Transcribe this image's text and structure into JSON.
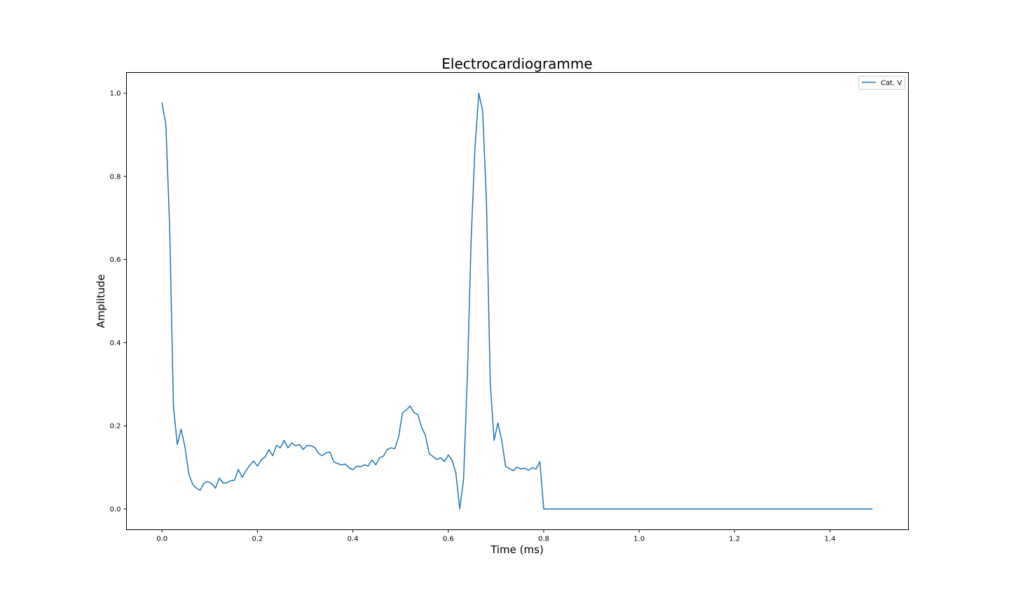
{
  "chart_data": {
    "type": "line",
    "title": "Electrocardiogramme",
    "xlabel": "Time (ms)",
    "ylabel": "Amplitude",
    "xlim": [
      -0.0745,
      1.5645
    ],
    "ylim": [
      -0.05,
      1.05
    ],
    "xticks": [
      0.0,
      0.2,
      0.4,
      0.6,
      0.8,
      1.0,
      1.2,
      1.4
    ],
    "xtick_labels": [
      "0.0",
      "0.2",
      "0.4",
      "0.6",
      "0.8",
      "1.0",
      "1.2",
      "1.4"
    ],
    "yticks": [
      0.0,
      0.2,
      0.4,
      0.6,
      0.8,
      1.0
    ],
    "ytick_labels": [
      "0.0",
      "0.2",
      "0.4",
      "0.6",
      "0.8",
      "1.0"
    ],
    "grid": false,
    "legend_position": "top-right",
    "series": [
      {
        "name": "Cat. V",
        "color": "#1f77b4",
        "x_start": 0.0,
        "x_step": 0.008,
        "values": [
          0.977,
          0.925,
          0.68,
          0.245,
          0.155,
          0.192,
          0.15,
          0.085,
          0.06,
          0.05,
          0.045,
          0.062,
          0.066,
          0.061,
          0.05,
          0.074,
          0.062,
          0.063,
          0.068,
          0.069,
          0.095,
          0.076,
          0.092,
          0.105,
          0.115,
          0.103,
          0.118,
          0.125,
          0.143,
          0.128,
          0.153,
          0.147,
          0.165,
          0.147,
          0.159,
          0.152,
          0.155,
          0.143,
          0.153,
          0.152,
          0.148,
          0.134,
          0.128,
          0.135,
          0.137,
          0.113,
          0.109,
          0.106,
          0.108,
          0.099,
          0.094,
          0.103,
          0.101,
          0.106,
          0.103,
          0.118,
          0.106,
          0.123,
          0.127,
          0.143,
          0.147,
          0.145,
          0.174,
          0.231,
          0.238,
          0.248,
          0.232,
          0.227,
          0.197,
          0.177,
          0.133,
          0.126,
          0.119,
          0.123,
          0.114,
          0.13,
          0.117,
          0.086,
          0.0,
          0.07,
          0.32,
          0.65,
          0.87,
          1.0,
          0.958,
          0.74,
          0.304,
          0.165,
          0.207,
          0.165,
          0.103,
          0.097,
          0.092,
          0.101,
          0.096,
          0.098,
          0.093,
          0.099,
          0.096,
          0.114,
          0.0,
          0.0,
          0.0,
          0.0,
          0.0,
          0.0,
          0.0,
          0.0,
          0.0,
          0.0,
          0.0,
          0.0,
          0.0,
          0.0,
          0.0,
          0.0,
          0.0,
          0.0,
          0.0,
          0.0,
          0.0,
          0.0,
          0.0,
          0.0,
          0.0,
          0.0,
          0.0,
          0.0,
          0.0,
          0.0,
          0.0,
          0.0,
          0.0,
          0.0,
          0.0,
          0.0,
          0.0,
          0.0,
          0.0,
          0.0,
          0.0,
          0.0,
          0.0,
          0.0,
          0.0,
          0.0,
          0.0,
          0.0,
          0.0,
          0.0,
          0.0,
          0.0,
          0.0,
          0.0,
          0.0,
          0.0,
          0.0,
          0.0,
          0.0,
          0.0,
          0.0,
          0.0,
          0.0,
          0.0,
          0.0,
          0.0,
          0.0,
          0.0,
          0.0,
          0.0,
          0.0,
          0.0,
          0.0,
          0.0,
          0.0,
          0.0,
          0.0,
          0.0,
          0.0,
          0.0,
          0.0,
          0.0,
          0.0,
          0.0,
          0.0,
          0.0,
          0.0
        ]
      }
    ]
  }
}
